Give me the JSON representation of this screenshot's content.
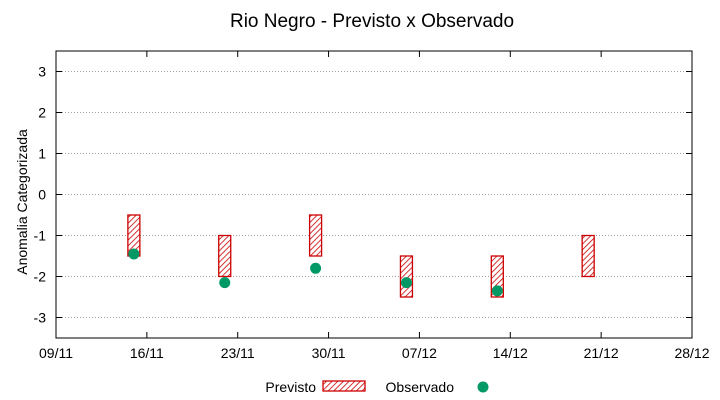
{
  "chart_data": {
    "type": "error-bar-scatter",
    "title": "Rio Negro - Previsto x Observado",
    "xlabel": "",
    "ylabel": "Anomalia Categorizada",
    "x_ticks": [
      "09/11",
      "16/11",
      "23/11",
      "30/11",
      "07/12",
      "14/12",
      "21/12",
      "28/12"
    ],
    "x_range_days": [
      0,
      49
    ],
    "ylim": [
      -3.5,
      3.5
    ],
    "y_ticks": [
      -3,
      -2,
      -1,
      0,
      1,
      2,
      3
    ],
    "grid": true,
    "series": [
      {
        "name": "Previsto",
        "style": "hatched-box",
        "color": "#cc0000",
        "points": [
          {
            "day": 6,
            "low": -1.5,
            "high": -0.5
          },
          {
            "day": 13,
            "low": -2.0,
            "high": -1.0
          },
          {
            "day": 20,
            "low": -1.5,
            "high": -0.5
          },
          {
            "day": 27,
            "low": -2.5,
            "high": -1.5
          },
          {
            "day": 34,
            "low": -2.5,
            "high": -1.5
          },
          {
            "day": 41,
            "low": -2.0,
            "high": -1.0
          }
        ]
      },
      {
        "name": "Observado",
        "style": "circle",
        "color": "#009966",
        "points": [
          {
            "day": 6,
            "value": -1.45
          },
          {
            "day": 13,
            "value": -2.15
          },
          {
            "day": 20,
            "value": -1.8
          },
          {
            "day": 27,
            "value": -2.15
          },
          {
            "day": 34,
            "value": -2.35
          }
        ]
      }
    ],
    "legend": {
      "position": "bottom"
    }
  }
}
